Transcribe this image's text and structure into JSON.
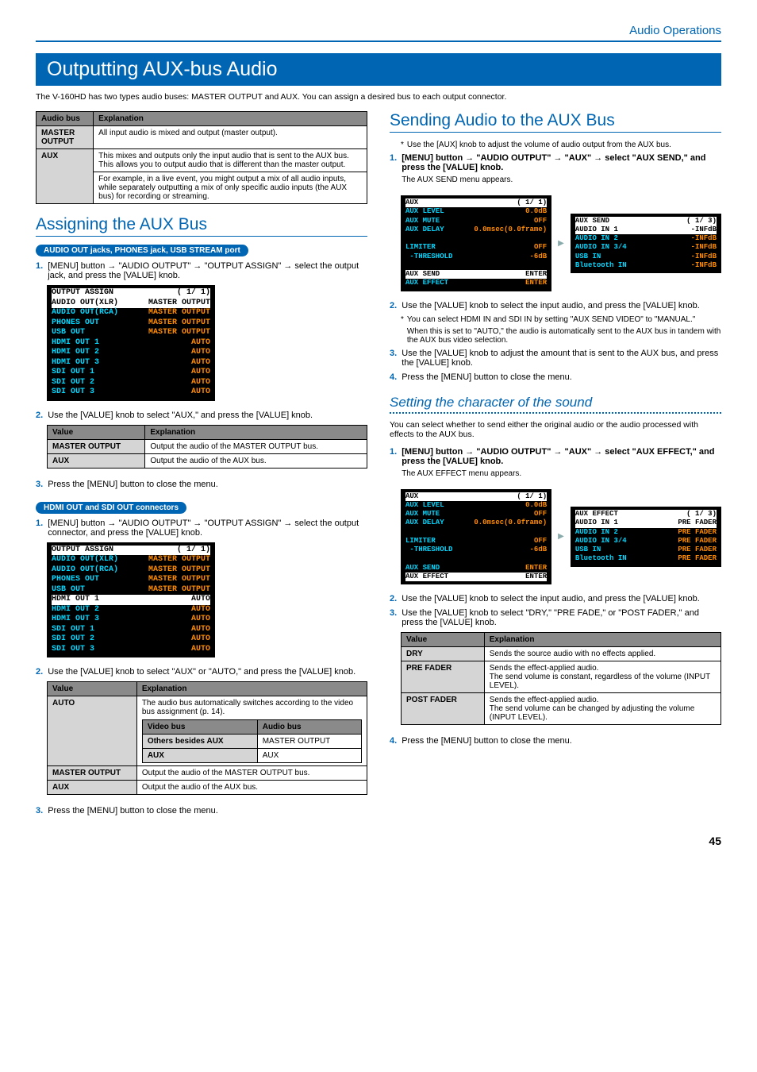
{
  "header": {
    "section": "Audio Operations"
  },
  "title": "Outputting AUX-bus Audio",
  "intro": "The V-160HD has two types audio buses: MASTER OUTPUT and AUX. You can assign a desired bus to each output connector.",
  "bus_table": {
    "headers": [
      "Audio bus",
      "Explanation"
    ],
    "rows": [
      {
        "bus": "MASTER OUTPUT",
        "exp": "All input audio is mixed and output (master output)."
      },
      {
        "bus": "AUX",
        "exp1": "This mixes and outputs only the input audio that is sent to the AUX bus. This allows you to output audio that is different than the master output.",
        "exp2": "For example, in a live event, you might output a mix of all audio inputs, while separately outputting a mix of only specific audio inputs (the AUX bus) for recording or streaming."
      }
    ]
  },
  "assign": {
    "title": "Assigning the AUX Bus",
    "pill1": "AUDIO OUT jacks, PHONES jack, USB STREAM port",
    "step1_1": "[MENU] button → \"AUDIO OUTPUT\" → \"OUTPUT ASSIGN\" → select the output jack, and press the [VALUE] knob.",
    "osd1": {
      "title": "OUTPUT ASSIGN",
      "page": "( 1/ 1)",
      "rows": [
        [
          "AUDIO OUT(XLR)",
          "MASTER OUTPUT",
          true
        ],
        [
          "AUDIO OUT(RCA)",
          "MASTER OUTPUT",
          false
        ],
        [
          "PHONES OUT",
          "MASTER OUTPUT",
          false
        ],
        [
          "USB OUT",
          "MASTER OUTPUT",
          false
        ],
        [
          "HDMI OUT 1",
          "AUTO",
          false
        ],
        [
          "HDMI OUT 2",
          "AUTO",
          false
        ],
        [
          "HDMI OUT 3",
          "AUTO",
          false
        ],
        [
          "SDI OUT 1",
          "AUTO",
          false
        ],
        [
          "SDI OUT 2",
          "AUTO",
          false
        ],
        [
          "SDI OUT 3",
          "AUTO",
          false
        ]
      ]
    },
    "step1_2": "Use the [VALUE] knob to select \"AUX,\" and press the [VALUE] knob.",
    "val_table1": {
      "headers": [
        "Value",
        "Explanation"
      ],
      "rows": [
        [
          "MASTER OUTPUT",
          "Output the audio of the MASTER OUTPUT bus."
        ],
        [
          "AUX",
          "Output the audio of the AUX bus."
        ]
      ]
    },
    "step1_3": "Press the [MENU] button to close the menu.",
    "pill2": "HDMI OUT and SDI OUT connectors",
    "step2_1": "[MENU] button → \"AUDIO OUTPUT\" → \"OUTPUT ASSIGN\" → select the output connector, and press the [VALUE] knob.",
    "osd2": {
      "title": "OUTPUT ASSIGN",
      "page": "( 1/ 1)",
      "rows": [
        [
          "AUDIO OUT(XLR)",
          "MASTER OUTPUT",
          false
        ],
        [
          "AUDIO OUT(RCA)",
          "MASTER OUTPUT",
          false
        ],
        [
          "PHONES OUT",
          "MASTER OUTPUT",
          false
        ],
        [
          "USB OUT",
          "MASTER OUTPUT",
          false
        ],
        [
          "HDMI OUT 1",
          "AUTO",
          true
        ],
        [
          "HDMI OUT 2",
          "AUTO",
          false
        ],
        [
          "HDMI OUT 3",
          "AUTO",
          false
        ],
        [
          "SDI OUT 1",
          "AUTO",
          false
        ],
        [
          "SDI OUT 2",
          "AUTO",
          false
        ],
        [
          "SDI OUT 3",
          "AUTO",
          false
        ]
      ]
    },
    "step2_2": "Use the [VALUE] knob to select \"AUX\" or \"AUTO,\" and press the [VALUE] knob.",
    "val_table2": {
      "headers": [
        "Value",
        "Explanation"
      ],
      "auto_label": "AUTO",
      "auto_text": "The audio bus automatically switches according to the video bus assignment (p. 14).",
      "nested_headers": [
        "Video bus",
        "Audio bus"
      ],
      "nested_rows": [
        [
          "Others besides AUX",
          "MASTER OUTPUT"
        ],
        [
          "AUX",
          "AUX"
        ]
      ],
      "rows": [
        [
          "MASTER OUTPUT",
          "Output the audio of the MASTER OUTPUT bus."
        ],
        [
          "AUX",
          "Output the audio of the AUX bus."
        ]
      ]
    },
    "step2_3": "Press the [MENU] button to close the menu."
  },
  "sending": {
    "title": "Sending Audio to the AUX Bus",
    "note1": "Use the [AUX] knob to adjust the volume of audio output from the AUX bus.",
    "step1": "[MENU] button → \"AUDIO OUTPUT\" → \"AUX\" → select \"AUX SEND,\" and press the [VALUE] knob.",
    "step1_after": "The AUX SEND menu appears.",
    "osd_left": {
      "title": "AUX",
      "page": "( 1/ 1)",
      "rows": [
        [
          "AUX LEVEL",
          "0.0dB",
          false
        ],
        [
          "AUX MUTE",
          "OFF",
          false
        ],
        [
          "AUX DELAY",
          "0.0msec(0.0frame)",
          false
        ],
        [
          "",
          "",
          false
        ],
        [
          "LIMITER",
          "OFF",
          false
        ],
        [
          " -THRESHOLD",
          "-6dB",
          false
        ],
        [
          "",
          "",
          false
        ],
        [
          "AUX SEND",
          "ENTER",
          true
        ],
        [
          "AUX EFFECT",
          "ENTER",
          false
        ]
      ]
    },
    "osd_right": {
      "title": "AUX SEND",
      "page": "( 1/ 3)",
      "rows": [
        [
          "AUDIO IN 1",
          "-INFdB",
          true
        ],
        [
          "AUDIO IN 2",
          "-INFdB",
          false
        ],
        [
          "AUDIO IN 3/4",
          "-INFdB",
          false
        ],
        [
          "USB IN",
          "-INFdB",
          false
        ],
        [
          "Bluetooth IN",
          "-INFdB",
          false
        ]
      ]
    },
    "step2": "Use the [VALUE] knob to select the input audio, and press the [VALUE] knob.",
    "note2a": "You can select HDMI IN and SDI IN by setting \"AUX SEND VIDEO\" to \"MANUAL.\"",
    "note2b": "When this is set to \"AUTO,\" the audio is automatically sent to the AUX bus in tandem with the AUX bus video selection.",
    "step3": "Use the [VALUE] knob to adjust the amount that is sent to the AUX bus, and press the [VALUE] knob.",
    "step4": "Press the [MENU] button to close the menu."
  },
  "character": {
    "title": "Setting the character of the sound",
    "intro": "You can select whether to send either the original audio or the audio processed with effects to the AUX bus.",
    "step1": "[MENU] button → \"AUDIO OUTPUT\" → \"AUX\" → select \"AUX EFFECT,\" and press the [VALUE] knob.",
    "step1_after": "The AUX EFFECT menu appears.",
    "osd_left": {
      "title": "AUX",
      "page": "( 1/ 1)",
      "rows": [
        [
          "AUX LEVEL",
          "0.0dB",
          false
        ],
        [
          "AUX MUTE",
          "OFF",
          false
        ],
        [
          "AUX DELAY",
          "0.0msec(0.0frame)",
          false
        ],
        [
          "",
          "",
          false
        ],
        [
          "LIMITER",
          "OFF",
          false
        ],
        [
          " -THRESHOLD",
          "-6dB",
          false
        ],
        [
          "",
          "",
          false
        ],
        [
          "AUX SEND",
          "ENTER",
          false
        ],
        [
          "AUX EFFECT",
          "ENTER",
          true
        ]
      ]
    },
    "osd_right": {
      "title": "AUX EFFECT",
      "page": "( 1/ 3)",
      "rows": [
        [
          "AUDIO IN 1",
          "PRE FADER",
          true
        ],
        [
          "AUDIO IN 2",
          "PRE FADER",
          false
        ],
        [
          "AUDIO IN 3/4",
          "PRE FADER",
          false
        ],
        [
          "USB IN",
          "PRE FADER",
          false
        ],
        [
          "Bluetooth IN",
          "PRE FADER",
          false
        ]
      ]
    },
    "step2": "Use the [VALUE] knob to select the input audio, and press the [VALUE] knob.",
    "step3": "Use the [VALUE] knob to select \"DRY,\" \"PRE FADE,\" or \"POST FADER,\" and press the [VALUE] knob.",
    "val_table": {
      "headers": [
        "Value",
        "Explanation"
      ],
      "rows": [
        [
          "DRY",
          "Sends the source audio with no effects applied."
        ],
        [
          "PRE FADER",
          "Sends the effect-applied audio.\nThe send volume is constant, regardless of the volume (INPUT LEVEL)."
        ],
        [
          "POST FADER",
          "Sends the effect-applied audio.\nThe send volume can be changed by adjusting the volume (INPUT LEVEL)."
        ]
      ]
    },
    "step4": "Press the [MENU] button to close the menu."
  },
  "page_number": "45"
}
